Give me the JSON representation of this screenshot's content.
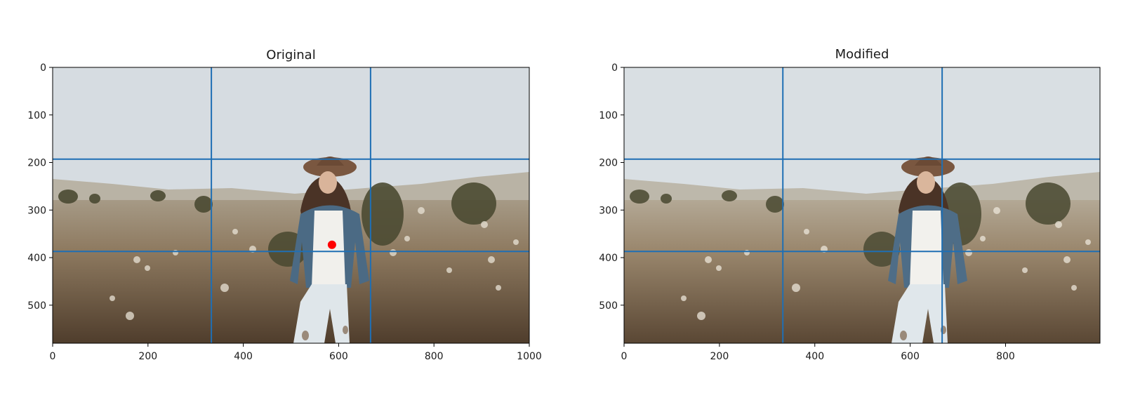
{
  "chart_data": [
    {
      "type": "image",
      "title": "Original",
      "xlim": [
        0,
        1000
      ],
      "ylim": [
        580,
        0
      ],
      "xticks": [
        "0",
        "200",
        "400",
        "600",
        "800",
        "1000"
      ],
      "xtick_values": [
        0,
        200,
        400,
        600,
        800,
        1000
      ],
      "yticks": [
        "0",
        "100",
        "200",
        "300",
        "400",
        "500"
      ],
      "ytick_values": [
        0,
        100,
        200,
        300,
        400,
        500
      ],
      "grid_lines": {
        "vertical": [
          333,
          667
        ],
        "horizontal": [
          193,
          387
        ],
        "color": "#1f6fb4"
      },
      "markers": [
        {
          "x": 586,
          "y": 373,
          "color": "#ff0000"
        }
      ]
    },
    {
      "type": "image",
      "title": "Modified",
      "xlim": [
        0,
        1000
      ],
      "ylim": [
        580,
        0
      ],
      "xticks": [
        "0",
        "200",
        "400",
        "600",
        "800"
      ],
      "xtick_values": [
        0,
        200,
        400,
        600,
        800
      ],
      "yticks": [
        "0",
        "100",
        "200",
        "300",
        "400",
        "500"
      ],
      "ytick_values": [
        0,
        100,
        200,
        300,
        400,
        500
      ],
      "grid_lines": {
        "vertical": [
          333,
          667
        ],
        "horizontal": [
          193,
          387
        ],
        "color": "#1f6fb4"
      },
      "markers": []
    }
  ],
  "colors": {
    "sky": "#d6dce1",
    "horizon": "#b9b3a5",
    "field": "#8e7a60",
    "ground": "#5e4a36",
    "bushes": "#4b4a32",
    "jacket": "#4b6a84",
    "shirt": "#f1f0ec",
    "jeans": "#dfe6ea",
    "hat": "#7a5740",
    "hair": "#4a3326",
    "skin": "#d9b49a",
    "flowers": "#e9e3d6"
  }
}
